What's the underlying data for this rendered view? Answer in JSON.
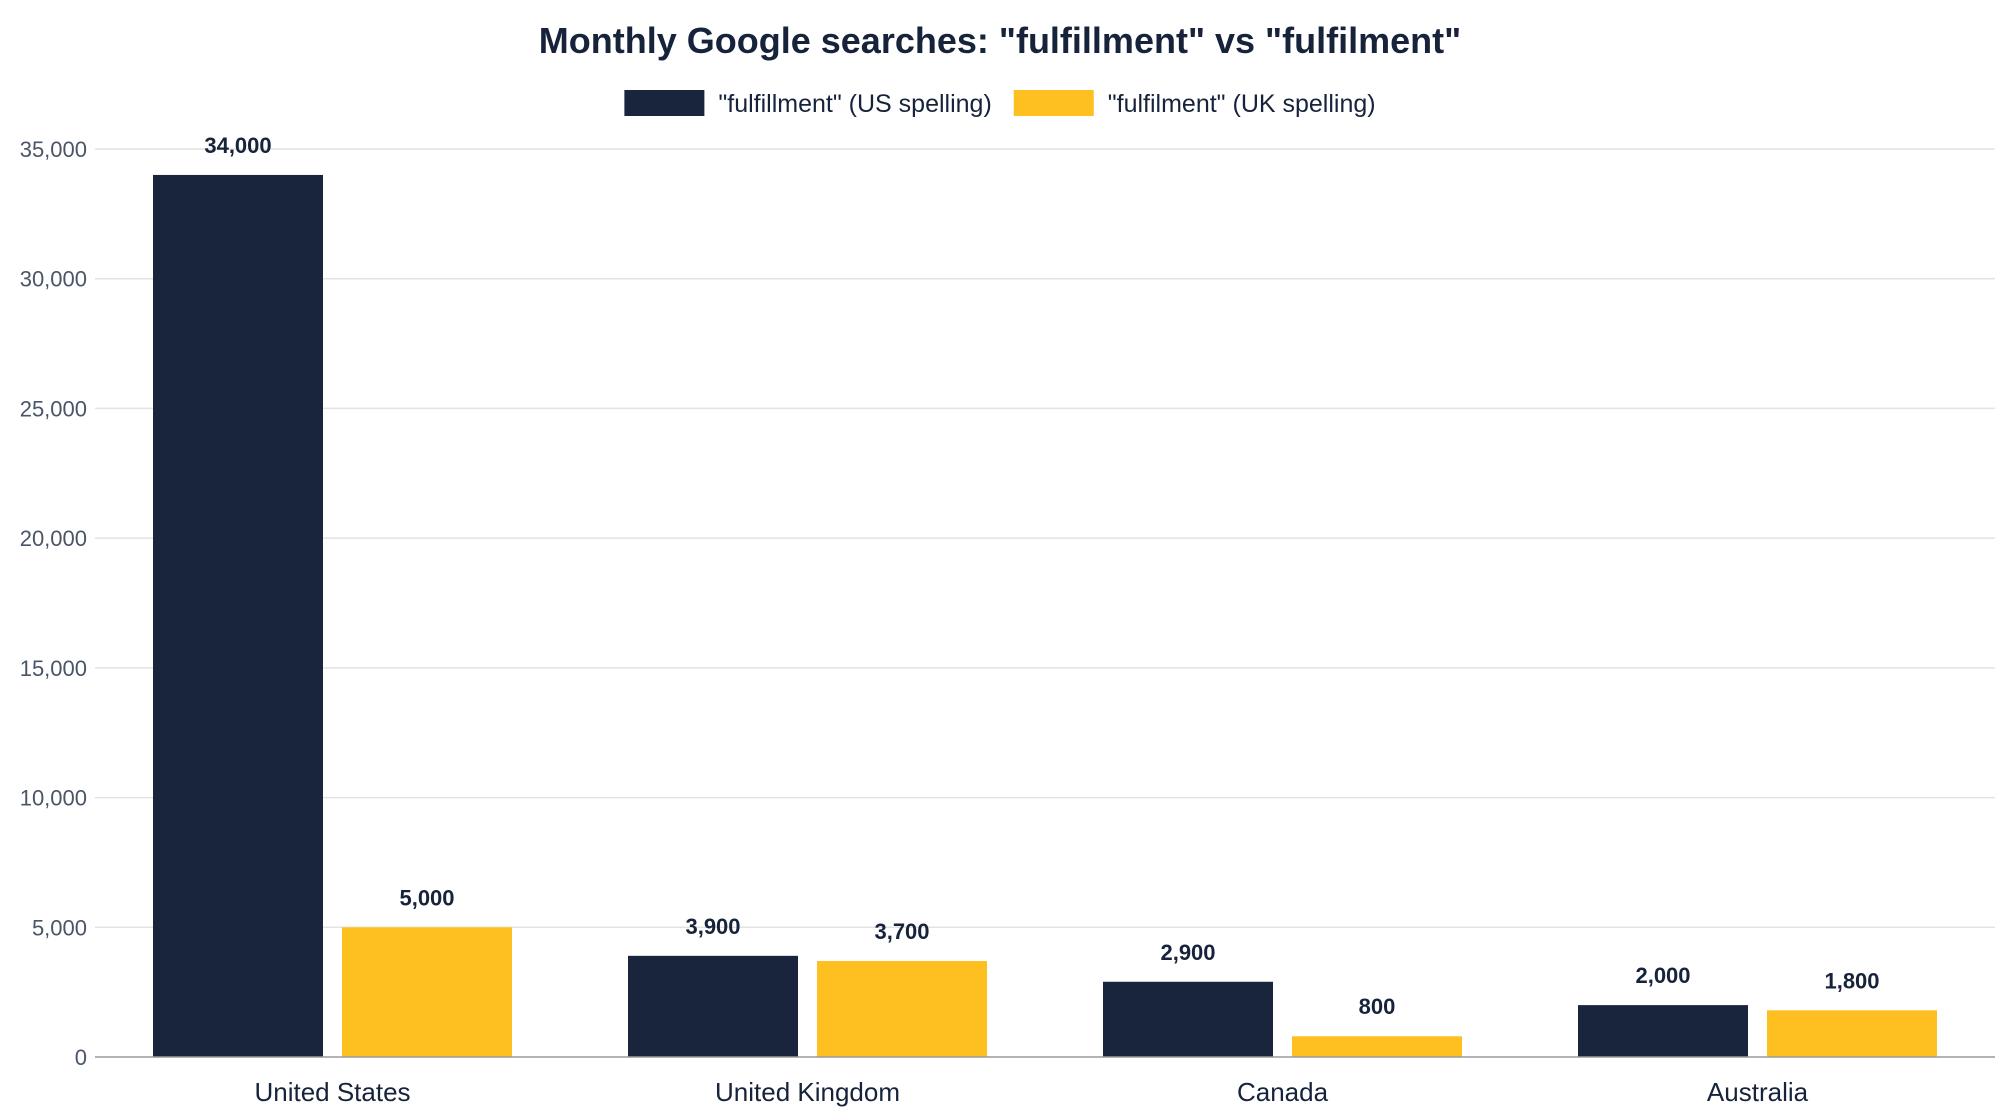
{
  "chart_data": {
    "type": "bar",
    "title": "Monthly Google searches: \"fulfillment\" vs \"fulfilment\"",
    "xlabel": "",
    "ylabel": "",
    "categories": [
      "United States",
      "United Kingdom",
      "Canada",
      "Australia"
    ],
    "series": [
      {
        "name": "\"fulfillment\" (US spelling)",
        "color": "#19243d",
        "values": [
          34000,
          3900,
          2900,
          2000
        ],
        "labels": [
          "34,000",
          "3,900",
          "2,900",
          "2,000"
        ]
      },
      {
        "name": "\"fulfilment\" (UK spelling)",
        "color": "#fec020",
        "values": [
          5000,
          3700,
          800,
          1800
        ],
        "labels": [
          "5,000",
          "3,700",
          "800",
          "1,800"
        ]
      }
    ],
    "ylim": [
      0,
      35000
    ],
    "yticks": [
      0,
      5000,
      10000,
      15000,
      20000,
      25000,
      30000,
      35000
    ],
    "ytick_labels": [
      "0",
      "5,000",
      "10,000",
      "15,000",
      "20,000",
      "25,000",
      "30,000",
      "35,000"
    ],
    "grid": true,
    "legend": "top-center"
  }
}
